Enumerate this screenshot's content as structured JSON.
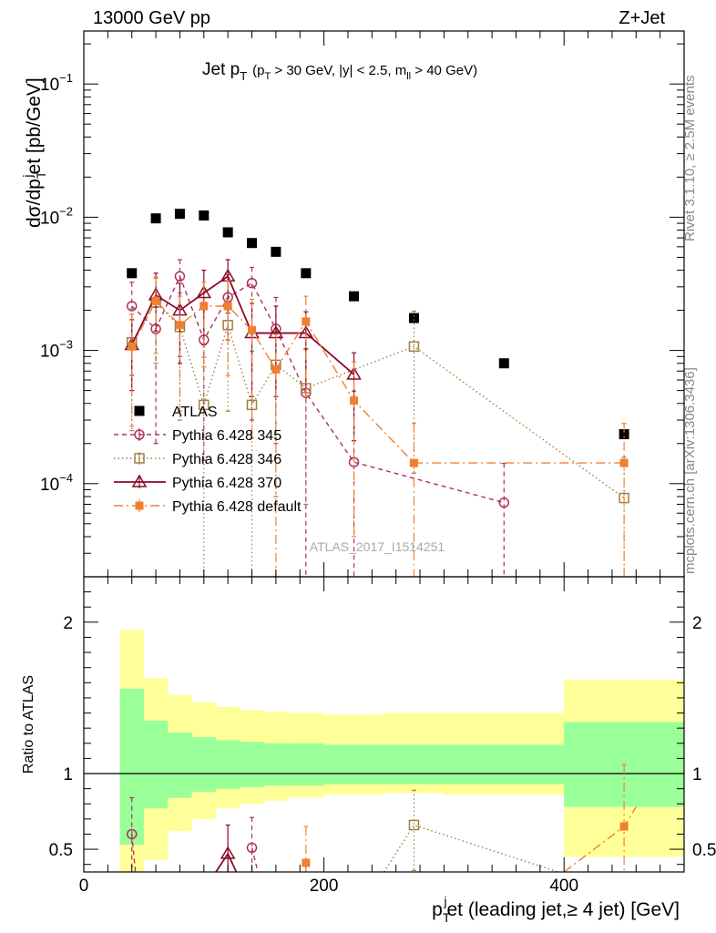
{
  "header": {
    "left": "13000 GeV pp",
    "right": "Z+Jet"
  },
  "side_labels": {
    "rivet": "Rivet 3.1.10, ≥ 2.5M events",
    "mcplots": "mcplots.cern.ch [arXiv:1306.3436]"
  },
  "watermark": "ATLAS_2017_I1514251",
  "chart_data": [
    {
      "type": "scatter",
      "panel": "main",
      "title": {
        "main": "Jet p",
        "sub": "T",
        "cut": "(p",
        "cut_sub": "T",
        "cut_rest": " > 30 GeV, |y| < 2.5, m",
        "cut_sub2": "ll",
        "cut_end": " > 40 GeV)"
      },
      "ylabel": {
        "a": "dσ/dp",
        "sub": "T",
        "sup": "j",
        "b": "et [pb/GeV]"
      },
      "yscale": "log",
      "ylim": [
        2e-05,
        0.25
      ],
      "xlim": [
        0,
        500
      ],
      "y_ticks": [
        {
          "value": 0.1,
          "base": "10",
          "exp": "−1"
        },
        {
          "value": 0.01,
          "base": "10",
          "exp": "−2"
        },
        {
          "value": 0.001,
          "base": "10",
          "exp": "−3"
        },
        {
          "value": 0.0001,
          "base": "10",
          "exp": "−4"
        }
      ],
      "legend_position": "middle-left",
      "series": [
        {
          "name": "ATLAS",
          "style": "data",
          "color": "#000000",
          "x": [
            40,
            60,
            80,
            100,
            120,
            140,
            160,
            185,
            225,
            275,
            350,
            450
          ],
          "y": [
            0.0038,
            0.0098,
            0.0106,
            0.0103,
            0.0077,
            0.0064,
            0.0055,
            0.0038,
            0.00255,
            0.00175,
            0.0008,
            0.000235
          ]
        },
        {
          "name": "Pythia 6.428 345",
          "style": "circle",
          "color": "#b03060",
          "dash": "5,4",
          "x": [
            40,
            60,
            80,
            100,
            120,
            140,
            160,
            185,
            225,
            350
          ],
          "y": [
            0.00215,
            0.00145,
            0.0036,
            0.0012,
            0.0025,
            0.0032,
            0.00145,
            0.00048,
            0.000145,
            7.2e-05
          ],
          "err_lo": [
            0.0015,
            0.00125,
            0.0027,
            0.00105,
            0.0013,
            0.0029,
            0.00125,
            0.00047,
            0.000144,
            7.15e-05
          ],
          "err_hi": [
            0.0011,
            0.00065,
            0.0012,
            0.0011,
            0.0012,
            0.001,
            0.00105,
            0.00055,
            0.00035,
            7e-05
          ]
        },
        {
          "name": "Pythia 6.428 346",
          "style": "square-open",
          "color": "#a08040",
          "dash": "1.5,3",
          "x": [
            40,
            60,
            80,
            100,
            120,
            140,
            160,
            185,
            275,
            450
          ],
          "y": [
            0.00115,
            0.0023,
            0.0015,
            0.00039,
            0.00155,
            0.00039,
            0.00078,
            0.00052,
            0.00107,
            7.8e-05
          ],
          "err_lo": [
            0.0009,
            0.0015,
            0.0012,
            0.000389,
            0.0012,
            0.000389,
            0.0007,
            0.00045,
            0.00095,
            7.7e-05
          ],
          "err_hi": [
            0.0009,
            0.0012,
            0.0012,
            0.0005,
            0.0009,
            0.0006,
            0.0006,
            0.0005,
            0.0009,
            8e-05
          ]
        },
        {
          "name": "Pythia 6.428 370",
          "style": "triangle",
          "color": "#8b0a2a",
          "dash": "",
          "x": [
            40,
            60,
            80,
            100,
            120,
            140,
            160,
            185,
            225
          ],
          "y": [
            0.0011,
            0.0026,
            0.002,
            0.0027,
            0.0036,
            0.00135,
            0.00135,
            0.00135,
            0.00066
          ],
          "err_lo": [
            0.0006,
            0.0012,
            0.0012,
            0.0016,
            0.0017,
            0.0009,
            0.0009,
            0.0009,
            0.00045
          ],
          "err_hi": [
            0.0006,
            0.0012,
            0.0012,
            0.0013,
            0.0012,
            0.0009,
            0.0008,
            0.0006,
            0.0003
          ],
          "step": true
        },
        {
          "name": "Pythia 6.428 default",
          "style": "square-filled",
          "color": "#f08030",
          "dash": "10,4,2,4",
          "x": [
            40,
            60,
            80,
            100,
            120,
            140,
            160,
            185,
            225,
            275,
            450
          ],
          "y": [
            0.00107,
            0.00235,
            0.00155,
            0.00215,
            0.00215,
            0.00142,
            0.00072,
            0.00165,
            0.00042,
            0.000143,
            0.000143
          ],
          "err_lo": [
            0.0008,
            0.0014,
            0.0012,
            0.0014,
            0.0015,
            0.0012,
            0.0007,
            0.0012,
            0.00038,
            0.000142,
            0.000142
          ],
          "err_hi": [
            0.0008,
            0.0012,
            0.001,
            0.0011,
            0.0012,
            0.001,
            0.0006,
            0.0009,
            0.0004,
            0.00014,
            0.00014
          ]
        }
      ]
    },
    {
      "type": "line",
      "panel": "ratio",
      "ylabel": "Ratio to ATLAS",
      "xlabel": {
        "a": "p",
        "sub": "T",
        "sup": "j",
        "b": "et (leading jet,≥ 4 jet) [GeV]"
      },
      "xlim": [
        0,
        500
      ],
      "ylim": [
        0.35,
        2.3
      ],
      "x_ticks": [
        0,
        200,
        400
      ],
      "y_ticks": [
        0.5,
        1,
        2
      ],
      "reference_line": 1,
      "bands": {
        "bin_edges": [
          30,
          50,
          70,
          90,
          110,
          130,
          150,
          170,
          200,
          250,
          300,
          400,
          500
        ],
        "yellow_lo": [
          0.25,
          0.43,
          0.62,
          0.7,
          0.77,
          0.8,
          0.82,
          0.84,
          0.86,
          0.87,
          0.86,
          0.45
        ],
        "yellow_hi": [
          1.95,
          1.63,
          1.52,
          1.47,
          1.44,
          1.42,
          1.41,
          1.4,
          1.39,
          1.4,
          1.4,
          1.62
        ],
        "green_lo": [
          0.53,
          0.77,
          0.84,
          0.88,
          0.9,
          0.91,
          0.92,
          0.92,
          0.93,
          0.93,
          0.93,
          0.78
        ],
        "green_hi": [
          1.56,
          1.35,
          1.27,
          1.24,
          1.22,
          1.21,
          1.2,
          1.2,
          1.19,
          1.19,
          1.19,
          1.34
        ]
      },
      "series": [
        {
          "name": "Pythia 6.428 345",
          "style": "circle",
          "color": "#b03060",
          "dash": "5,4",
          "x": [
            40,
            140
          ],
          "y": [
            0.6,
            0.51
          ],
          "err_lo": [
            0.3,
            0.2
          ],
          "err_hi": [
            0.24,
            0.2
          ],
          "lines": [
            [
              [
                40,
                0.6
              ],
              [
                43,
                0.35
              ]
            ],
            [
              [
                140,
                0.51
              ],
              [
                145,
                0.35
              ]
            ]
          ]
        },
        {
          "name": "Pythia 6.428 346",
          "style": "square-open",
          "color": "#a08040",
          "dash": "1.5,3",
          "x": [
            275
          ],
          "y": [
            0.66
          ],
          "err_lo": [
            0.3
          ],
          "err_hi": [
            0.23
          ],
          "lines": [
            [
              [
                250,
                0.35
              ],
              [
                275,
                0.66
              ],
              [
                395,
                0.35
              ]
            ]
          ]
        },
        {
          "name": "Pythia 6.428 370",
          "style": "triangle",
          "color": "#8b0a2a",
          "dash": "",
          "x": [
            120
          ],
          "y": [
            0.47
          ],
          "err_lo": [
            0.2
          ],
          "err_hi": [
            0.19
          ],
          "lines": [
            [
              [
                110,
                0.35
              ],
              [
                120,
                0.47
              ],
              [
                127,
                0.35
              ]
            ]
          ]
        },
        {
          "name": "Pythia 6.428 default",
          "style": "square-filled",
          "color": "#f08030",
          "dash": "10,4,2,4",
          "x": [
            185,
            450
          ],
          "y": [
            0.41,
            0.65
          ],
          "err_lo": [
            0.1,
            0.3
          ],
          "err_hi": [
            0.24,
            0.41
          ],
          "lines": [
            [
              [
                185,
                0.41
              ],
              [
                185,
                0.35
              ]
            ],
            [
              [
                400,
                0.35
              ],
              [
                450,
                0.65
              ],
              [
                460,
                0.78
              ]
            ]
          ]
        }
      ]
    }
  ]
}
